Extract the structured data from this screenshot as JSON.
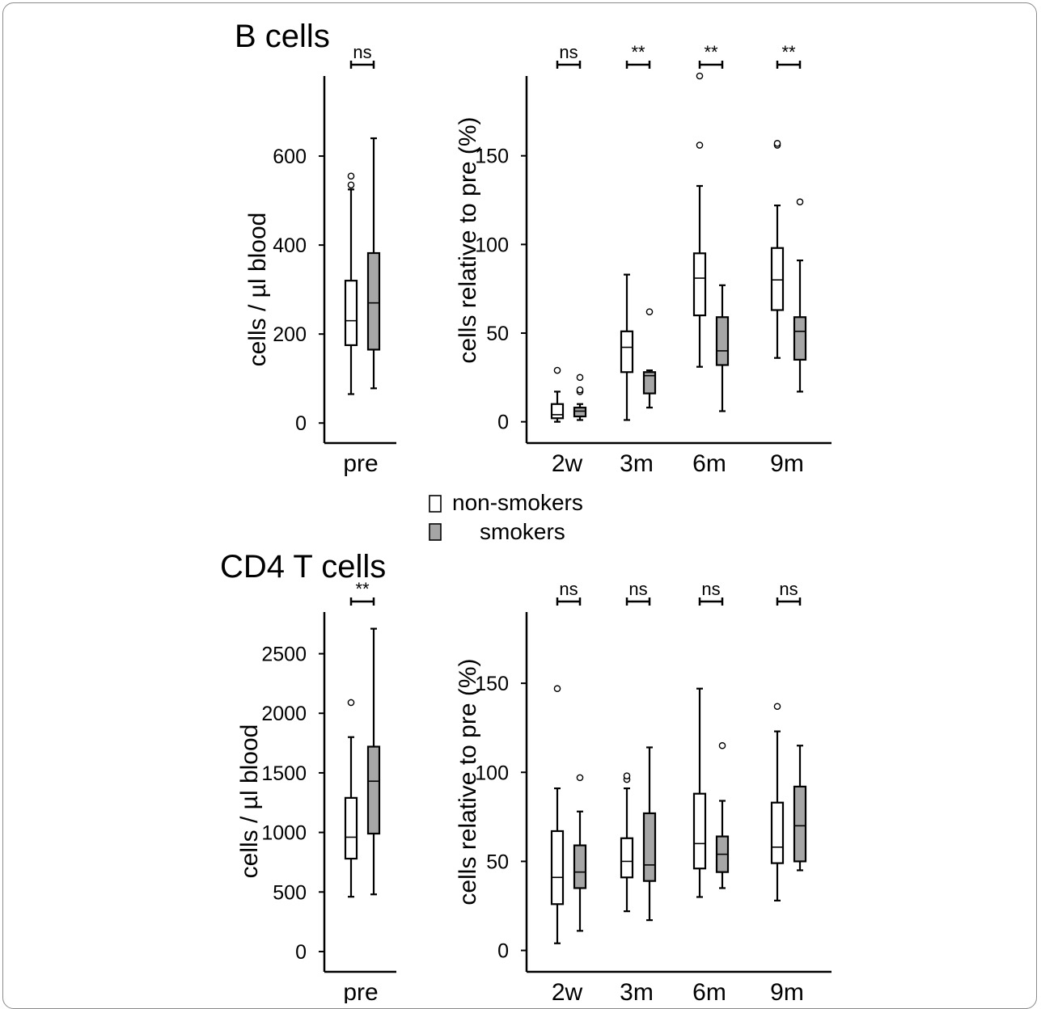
{
  "legend": {
    "items": [
      {
        "label": "non-smokers",
        "color": "#ffffff"
      },
      {
        "label": "smokers",
        "color": "#a6a6a6"
      }
    ]
  },
  "colors": {
    "non_smokers": "#ffffff",
    "smokers": "#a6a6a6",
    "stroke": "#000000"
  },
  "chart_data": [
    {
      "type": "box",
      "panel": "B cells",
      "title": "B cells",
      "ylabel": "cells / µl blood",
      "categories": [
        "pre"
      ],
      "yticks": [
        0,
        200,
        400,
        600
      ],
      "ylim": [
        -45,
        780
      ],
      "significance": [
        "ns"
      ],
      "series": [
        {
          "name": "non-smokers",
          "boxes": [
            {
              "min": 65,
              "q1": 175,
              "median": 230,
              "q3": 320,
              "max": 525,
              "outliers": [
                535,
                555
              ]
            }
          ]
        },
        {
          "name": "smokers",
          "boxes": [
            {
              "min": 78,
              "q1": 165,
              "median": 270,
              "q3": 382,
              "max": 640,
              "outliers": []
            }
          ]
        }
      ]
    },
    {
      "type": "box",
      "panel": "B cells",
      "title": "",
      "ylabel": "cells relative to pre (%)",
      "categories": [
        "2w",
        "3m",
        "6m",
        "9m"
      ],
      "yticks": [
        0,
        50,
        100,
        150
      ],
      "ylim": [
        -12,
        195
      ],
      "significance": [
        "ns",
        "**",
        "**",
        "**"
      ],
      "series": [
        {
          "name": "non-smokers",
          "boxes": [
            {
              "min": 0,
              "q1": 2,
              "median": 4,
              "q3": 10,
              "max": 17,
              "outliers": [
                29
              ]
            },
            {
              "min": 1,
              "q1": 28,
              "median": 42,
              "q3": 51,
              "max": 83,
              "outliers": []
            },
            {
              "min": 31,
              "q1": 60,
              "median": 81,
              "q3": 95,
              "max": 133,
              "outliers": [
                156,
                195
              ]
            },
            {
              "min": 36,
              "q1": 63,
              "median": 80,
              "q3": 98,
              "max": 122,
              "outliers": [
                156,
                157
              ]
            }
          ]
        },
        {
          "name": "smokers",
          "boxes": [
            {
              "min": 1,
              "q1": 3,
              "median": 6,
              "q3": 8,
              "max": 10,
              "outliers": [
                17,
                18,
                25
              ]
            },
            {
              "min": 8,
              "q1": 16,
              "median": 26,
              "q3": 28,
              "max": 29,
              "outliers": [
                62
              ]
            },
            {
              "min": 6,
              "q1": 32,
              "median": 40,
              "q3": 59,
              "max": 77,
              "outliers": []
            },
            {
              "min": 17,
              "q1": 35,
              "median": 51,
              "q3": 59,
              "max": 91,
              "outliers": [
                124
              ]
            }
          ]
        }
      ]
    },
    {
      "type": "box",
      "panel": "CD4 T cells",
      "title": "CD4 T cells",
      "ylabel": "cells / µl blood",
      "categories": [
        "pre"
      ],
      "yticks": [
        0,
        500,
        1000,
        1500,
        2000,
        2500
      ],
      "ylim": [
        -170,
        2850
      ],
      "significance": [
        "**"
      ],
      "series": [
        {
          "name": "non-smokers",
          "boxes": [
            {
              "min": 460,
              "q1": 780,
              "median": 960,
              "q3": 1290,
              "max": 1800,
              "outliers": [
                2090
              ]
            }
          ]
        },
        {
          "name": "smokers",
          "boxes": [
            {
              "min": 480,
              "q1": 990,
              "median": 1430,
              "q3": 1720,
              "max": 2710,
              "outliers": []
            }
          ]
        }
      ]
    },
    {
      "type": "box",
      "panel": "CD4 T cells",
      "title": "",
      "ylabel": "cells relative to pre (%)",
      "categories": [
        "2w",
        "3m",
        "6m",
        "9m"
      ],
      "yticks": [
        0,
        50,
        100,
        150
      ],
      "ylim": [
        -12,
        190
      ],
      "significance": [
        "ns",
        "ns",
        "ns",
        "ns"
      ],
      "series": [
        {
          "name": "non-smokers",
          "boxes": [
            {
              "min": 4,
              "q1": 26,
              "median": 41,
              "q3": 67,
              "max": 91,
              "outliers": [
                147
              ]
            },
            {
              "min": 22,
              "q1": 41,
              "median": 50,
              "q3": 63,
              "max": 91,
              "outliers": [
                96,
                98
              ]
            },
            {
              "min": 30,
              "q1": 46,
              "median": 60,
              "q3": 88,
              "max": 147,
              "outliers": []
            },
            {
              "min": 28,
              "q1": 49,
              "median": 58,
              "q3": 83,
              "max": 123,
              "outliers": [
                137
              ]
            }
          ]
        },
        {
          "name": "smokers",
          "boxes": [
            {
              "min": 11,
              "q1": 35,
              "median": 44,
              "q3": 59,
              "max": 78,
              "outliers": [
                97
              ]
            },
            {
              "min": 17,
              "q1": 39,
              "median": 48,
              "q3": 77,
              "max": 114,
              "outliers": []
            },
            {
              "min": 35,
              "q1": 44,
              "median": 54,
              "q3": 64,
              "max": 84,
              "outliers": [
                115
              ]
            },
            {
              "min": 45,
              "q1": 50,
              "median": 70,
              "q3": 92,
              "max": 115,
              "outliers": []
            }
          ]
        }
      ]
    }
  ]
}
